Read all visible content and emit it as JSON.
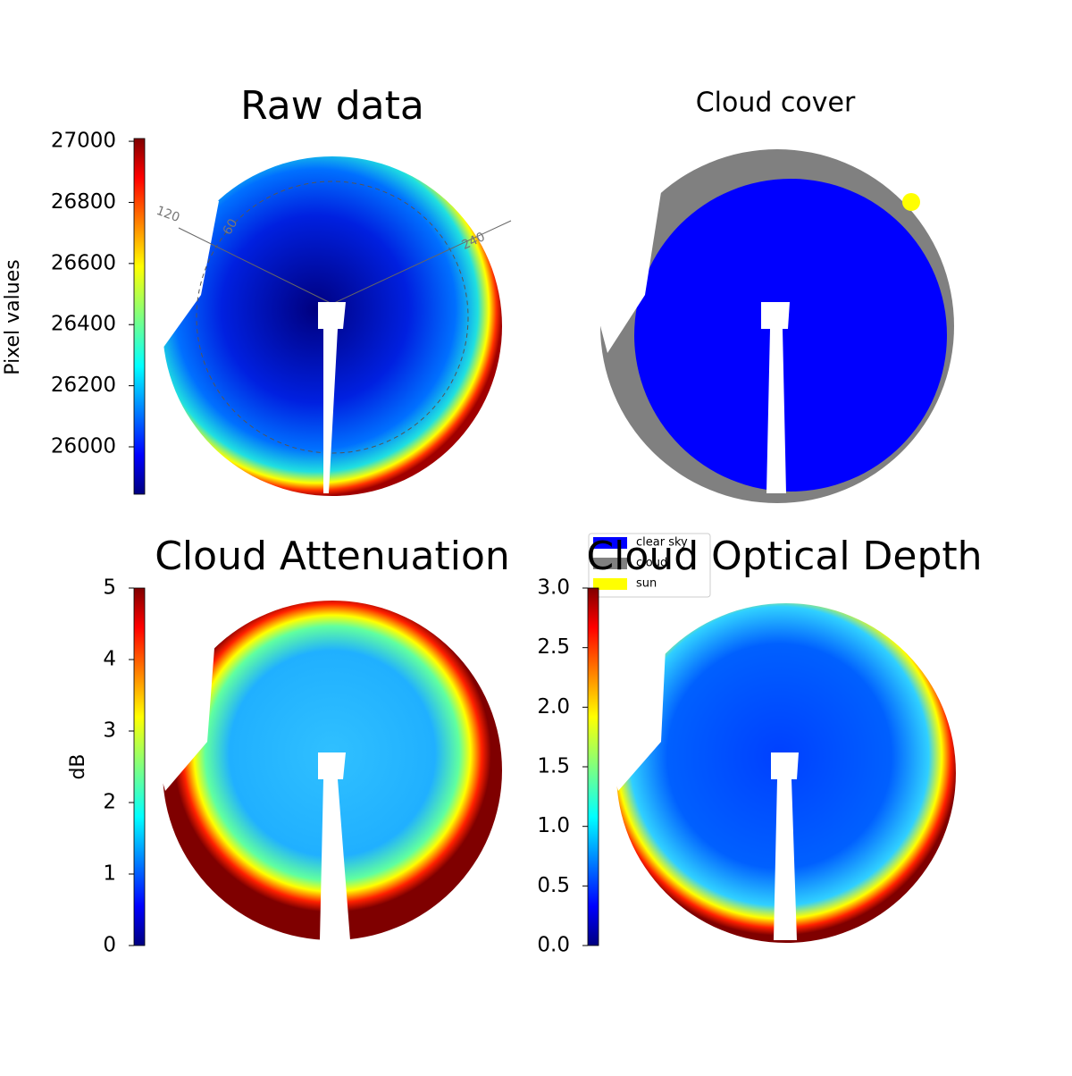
{
  "chart_data": [
    {
      "type": "image",
      "title": "Raw data",
      "colorbar": {
        "label": "Pixel values",
        "lim": [
          25845,
          27009
        ],
        "ticks": [
          26000,
          26200,
          26400,
          26600,
          26800,
          27000
        ]
      },
      "annotations": [
        "120",
        "60",
        "240"
      ]
    },
    {
      "type": "image",
      "title": "Cloud cover",
      "legend": [
        {
          "name": "clear sky",
          "color": "#0000ff"
        },
        {
          "name": "cloud",
          "color": "#808080"
        },
        {
          "name": "sun",
          "color": "#ffff00"
        }
      ]
    },
    {
      "type": "image",
      "title": "Cloud Attenuation",
      "colorbar": {
        "label": "dB",
        "lim": [
          0,
          5
        ],
        "ticks": [
          0,
          1,
          2,
          3,
          4,
          5
        ]
      }
    },
    {
      "type": "image",
      "title": "Cloud Optical Depth",
      "colorbar": {
        "lim": [
          0,
          3
        ],
        "ticks": [
          {
            "value": 0,
            "label": "0.0"
          },
          0.5,
          {
            "value": 1,
            "label": "1.0"
          },
          1.5,
          {
            "value": 2,
            "label": "2.0"
          },
          2.5,
          {
            "value": 3,
            "label": "3.0"
          }
        ]
      }
    }
  ]
}
